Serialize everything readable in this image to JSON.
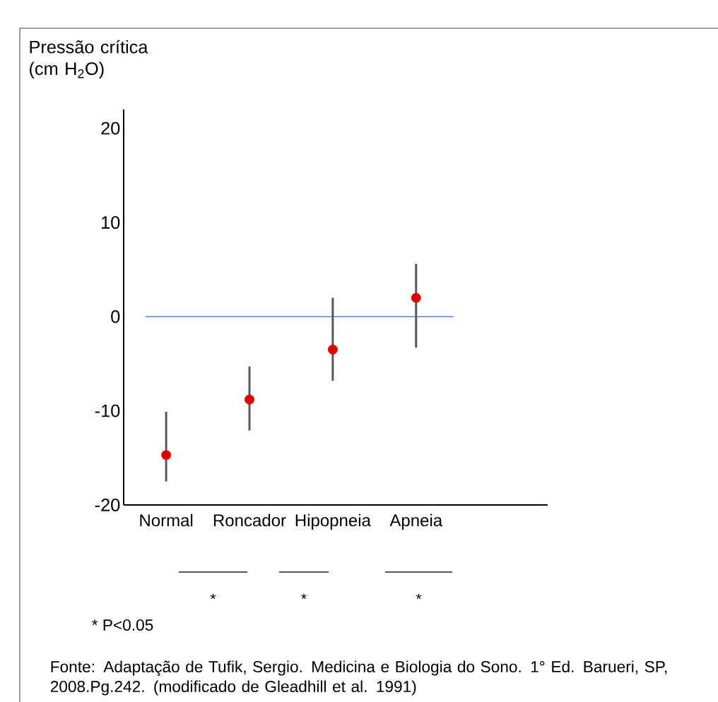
{
  "chart_data": {
    "type": "scatter",
    "ylabel": "Pressão crítica (cm H$_{2}$O)",
    "categories": [
      "Normal",
      "Roncador",
      "Hipopneia",
      "Apneia"
    ],
    "series": [
      {
        "color": "#e00000",
        "values": [
          -14.7,
          -8.8,
          -3.5,
          2.0
        ],
        "errors": [
          [
            -17.5,
            -10.1
          ],
          [
            -12.1,
            -5.3
          ],
          [
            -6.8,
            2.0
          ],
          [
            -3.3,
            5.6
          ]
        ]
      }
    ],
    "ylim": [
      -20,
      22
    ],
    "yticks": [
      -20,
      -10,
      0,
      10,
      20
    ],
    "marker": "circle",
    "grid": false,
    "ref_lines": [
      {
        "axis": "y",
        "value": 0,
        "color": "#4472c4"
      }
    ],
    "annotations": [
      "*",
      "*",
      "*",
      "* P<0.05",
      "Fonte: Adaptação de Tufik, Sergio. Medicina e Biologia do Sono. 1° Ed. Barueri, SP, 2008.Pg.242. (modificado de Gleadhill et al. 1991)"
    ]
  }
}
